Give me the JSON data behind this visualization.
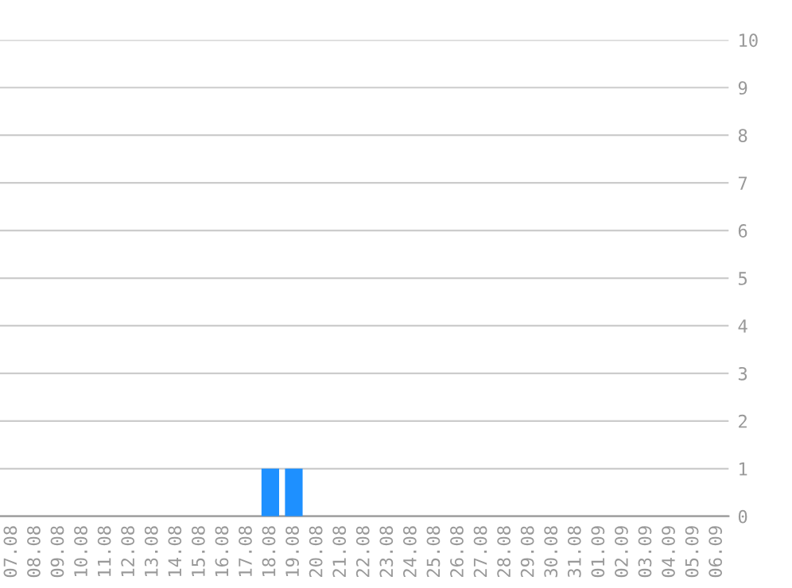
{
  "chart_data": {
    "type": "bar",
    "categories": [
      "07.08",
      "08.08",
      "09.08",
      "10.08",
      "11.08",
      "12.08",
      "13.08",
      "14.08",
      "15.08",
      "16.08",
      "17.08",
      "18.08",
      "19.08",
      "20.08",
      "21.08",
      "22.08",
      "23.08",
      "24.08",
      "25.08",
      "26.08",
      "27.08",
      "28.08",
      "29.08",
      "30.08",
      "31.08",
      "01.09",
      "02.09",
      "03.09",
      "04.09",
      "05.09",
      "06.09"
    ],
    "values": [
      0,
      0,
      0,
      0,
      0,
      0,
      0,
      0,
      0,
      0,
      0,
      1,
      1,
      0,
      0,
      0,
      0,
      0,
      0,
      0,
      0,
      0,
      0,
      0,
      0,
      0,
      0,
      0,
      0,
      0,
      0
    ],
    "color": "#1e90ff",
    "ylim": [
      0,
      10
    ],
    "yticks": [
      0,
      1,
      2,
      3,
      4,
      5,
      6,
      7,
      8,
      9,
      10
    ],
    "grid": "y",
    "legend": false
  }
}
